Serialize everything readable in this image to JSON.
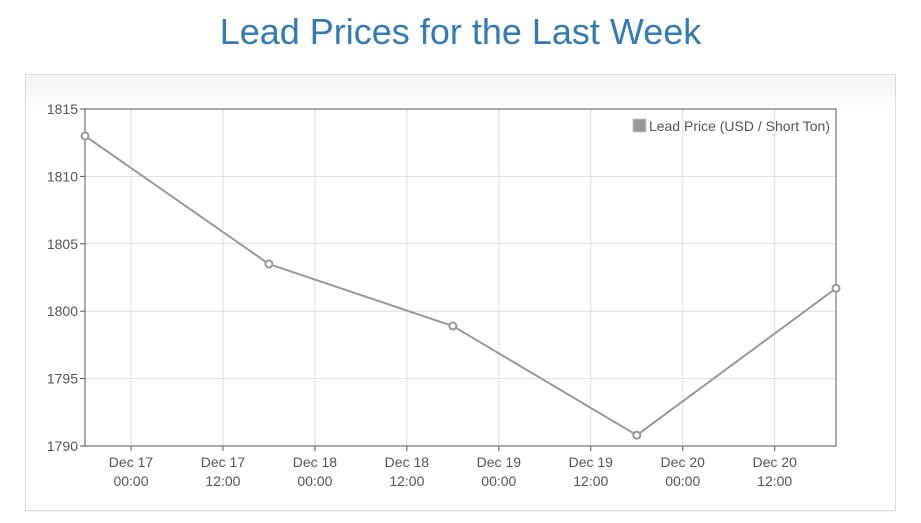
{
  "page": {
    "title": "Lead Prices for the Last Week"
  },
  "colors": {
    "title": "#337ab7",
    "series": "#999999",
    "grid": "#dddddd",
    "axis": "#555555"
  },
  "chart_data": {
    "type": "line",
    "title": "",
    "xlabel": "",
    "ylabel": "",
    "xlim": [
      "2023-12-16 18:00",
      "2023-12-20 20:00"
    ],
    "ylim": [
      1790,
      1815
    ],
    "y_ticks": [
      1815,
      1810,
      1805,
      1800,
      1795,
      1790
    ],
    "x_ticks": [
      {
        "t": "2023-12-17 00:00",
        "line1": "Dec 17",
        "line2": "00:00"
      },
      {
        "t": "2023-12-17 12:00",
        "line1": "Dec 17",
        "line2": "12:00"
      },
      {
        "t": "2023-12-18 00:00",
        "line1": "Dec 18",
        "line2": "00:00"
      },
      {
        "t": "2023-12-18 12:00",
        "line1": "Dec 18",
        "line2": "12:00"
      },
      {
        "t": "2023-12-19 00:00",
        "line1": "Dec 19",
        "line2": "00:00"
      },
      {
        "t": "2023-12-19 12:00",
        "line1": "Dec 19",
        "line2": "12:00"
      },
      {
        "t": "2023-12-20 00:00",
        "line1": "Dec 20",
        "line2": "00:00"
      },
      {
        "t": "2023-12-20 12:00",
        "line1": "Dec 20",
        "line2": "12:00"
      }
    ],
    "grid": true,
    "legend_position": "top-right",
    "series": [
      {
        "name": "Lead Price (USD / Short Ton)",
        "color": "#999999",
        "points": [
          {
            "x": "2023-12-16 18:00",
            "y": 1813.0
          },
          {
            "x": "2023-12-17 18:00",
            "y": 1803.5
          },
          {
            "x": "2023-12-18 18:00",
            "y": 1798.9
          },
          {
            "x": "2023-12-19 18:00",
            "y": 1790.8
          },
          {
            "x": "2023-12-20 20:00",
            "y": 1801.7
          }
        ]
      }
    ]
  }
}
